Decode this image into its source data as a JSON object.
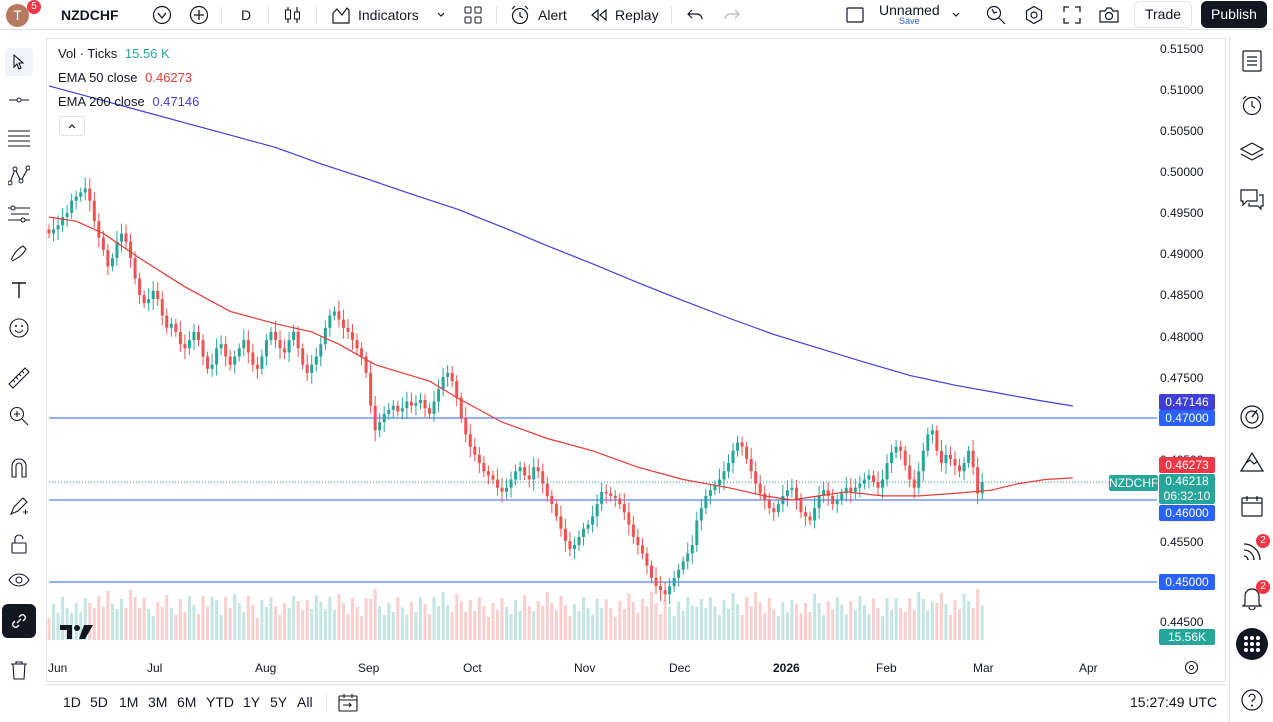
{
  "toolbar": {
    "avatar_letter": "T",
    "avatar_badge": "5",
    "symbol": "NZDCHF",
    "interval": "D",
    "indicators_label": "Indicators",
    "alert_label": "Alert",
    "replay_label": "Replay",
    "layout_name": "Unnamed",
    "layout_save": "Save",
    "trade_label": "Trade",
    "publish_label": "Publish"
  },
  "legend": {
    "vol_label": "Vol · Ticks",
    "vol_value": "15.56 K",
    "ema50_label": "EMA 50 close",
    "ema50_value": "0.46273",
    "ema200_label": "EMA 200 close",
    "ema200_value": "0.47146"
  },
  "price_axis": {
    "ticks": [
      "0.51500",
      "0.51000",
      "0.50500",
      "0.50000",
      "0.49500",
      "0.49000",
      "0.48500",
      "0.48000",
      "0.47500",
      "0.46500",
      "0.45500",
      "0.44500"
    ],
    "labels": {
      "ema200": "0.47146",
      "level_047": "0.47000",
      "ema50": "0.46273",
      "symbol_tag": "NZDCHF",
      "last_price": "0.46218",
      "countdown": "06:32:10",
      "level_046": "0.46000",
      "level_045": "0.45000",
      "volume": "15.56K"
    }
  },
  "time_axis": [
    "Jun",
    "Jul",
    "Aug",
    "Sep",
    "Oct",
    "Nov",
    "Dec",
    "2026",
    "Feb",
    "Mar",
    "Apr"
  ],
  "bottom": {
    "ranges": [
      "1D",
      "5D",
      "1M",
      "3M",
      "6M",
      "YTD",
      "1Y",
      "5Y",
      "All"
    ],
    "clock": "15:27:49 UTC"
  },
  "right_badges": {
    "news": "2",
    "alerts": "2"
  },
  "colors": {
    "up": "#26a69a",
    "down": "#ef5350",
    "ema50": "#e53935",
    "ema200": "#3f3fd6",
    "level": "#2962ff",
    "accent": "#131722"
  },
  "chart_data": {
    "type": "candlestick",
    "symbol": "NZDCHF",
    "timeframe": "D",
    "x_labels": [
      "Jun",
      "Jul",
      "Aug",
      "Sep",
      "Oct",
      "Nov",
      "Dec",
      "2026",
      "Feb",
      "Mar",
      "Apr"
    ],
    "ylim": [
      0.442,
      0.5165
    ],
    "horizontal_levels": [
      0.47,
      0.46,
      0.45
    ],
    "last_price": 0.46218,
    "series": [
      {
        "name": "EMA 50 close",
        "points": [
          [
            0,
            0.4945
          ],
          [
            6,
            0.494
          ],
          [
            12,
            0.4925
          ],
          [
            20,
            0.4895
          ],
          [
            30,
            0.486
          ],
          [
            40,
            0.483
          ],
          [
            50,
            0.4815
          ],
          [
            58,
            0.4805
          ],
          [
            64,
            0.479
          ],
          [
            72,
            0.4765
          ],
          [
            78,
            0.4755
          ],
          [
            84,
            0.4745
          ],
          [
            90,
            0.4725
          ],
          [
            100,
            0.4695
          ],
          [
            110,
            0.4675
          ],
          [
            120,
            0.466
          ],
          [
            130,
            0.464
          ],
          [
            140,
            0.4625
          ],
          [
            150,
            0.4615
          ],
          [
            158,
            0.4605
          ],
          [
            164,
            0.46
          ],
          [
            170,
            0.4605
          ],
          [
            176,
            0.461
          ],
          [
            184,
            0.4605
          ],
          [
            192,
            0.4605
          ],
          [
            200,
            0.4608
          ],
          [
            208,
            0.4612
          ],
          [
            214,
            0.462
          ],
          [
            220,
            0.4625
          ],
          [
            226,
            0.4627
          ]
        ]
      },
      {
        "name": "EMA 200 close",
        "points": [
          [
            0,
            0.5105
          ],
          [
            10,
            0.509
          ],
          [
            20,
            0.5075
          ],
          [
            30,
            0.506
          ],
          [
            40,
            0.5045
          ],
          [
            50,
            0.503
          ],
          [
            60,
            0.501
          ],
          [
            70,
            0.4992
          ],
          [
            80,
            0.4973
          ],
          [
            90,
            0.4955
          ],
          [
            100,
            0.4933
          ],
          [
            110,
            0.491
          ],
          [
            120,
            0.4888
          ],
          [
            130,
            0.4865
          ],
          [
            140,
            0.4843
          ],
          [
            150,
            0.4822
          ],
          [
            160,
            0.4802
          ],
          [
            170,
            0.4785
          ],
          [
            180,
            0.4768
          ],
          [
            190,
            0.4752
          ],
          [
            200,
            0.474
          ],
          [
            210,
            0.473
          ],
          [
            218,
            0.4722
          ],
          [
            226,
            0.47146
          ]
        ]
      }
    ],
    "closes": [
      0.4925,
      0.493,
      0.4935,
      0.4945,
      0.495,
      0.4965,
      0.497,
      0.4975,
      0.498,
      0.4965,
      0.494,
      0.492,
      0.4905,
      0.4885,
      0.4895,
      0.4915,
      0.4925,
      0.4915,
      0.4895,
      0.487,
      0.485,
      0.484,
      0.4845,
      0.4855,
      0.4845,
      0.4825,
      0.481,
      0.4815,
      0.4805,
      0.479,
      0.4785,
      0.4795,
      0.4805,
      0.4795,
      0.4775,
      0.476,
      0.4765,
      0.4785,
      0.479,
      0.4775,
      0.4765,
      0.4775,
      0.4785,
      0.4795,
      0.478,
      0.4765,
      0.476,
      0.4775,
      0.4795,
      0.4805,
      0.4795,
      0.4785,
      0.478,
      0.4795,
      0.4805,
      0.4785,
      0.4765,
      0.4755,
      0.4765,
      0.4775,
      0.479,
      0.481,
      0.4825,
      0.483,
      0.482,
      0.481,
      0.4805,
      0.4795,
      0.4785,
      0.4775,
      0.4755,
      0.4715,
      0.4685,
      0.4695,
      0.4705,
      0.471,
      0.4715,
      0.4708,
      0.4712,
      0.472,
      0.4715,
      0.4718,
      0.4722,
      0.4712,
      0.4705,
      0.472,
      0.4735,
      0.475,
      0.4755,
      0.4745,
      0.4725,
      0.47,
      0.468,
      0.4665,
      0.4655,
      0.4645,
      0.4635,
      0.463,
      0.4625,
      0.4615,
      0.461,
      0.4615,
      0.4625,
      0.4635,
      0.464,
      0.463,
      0.4625,
      0.464,
      0.4635,
      0.462,
      0.4605,
      0.4595,
      0.458,
      0.4565,
      0.455,
      0.454,
      0.4545,
      0.4555,
      0.4565,
      0.457,
      0.458,
      0.4595,
      0.461,
      0.4608,
      0.4605,
      0.4602,
      0.4595,
      0.4585,
      0.457,
      0.4555,
      0.4545,
      0.4535,
      0.452,
      0.4505,
      0.4495,
      0.449,
      0.4485,
      0.4495,
      0.4505,
      0.4515,
      0.4525,
      0.4535,
      0.4545,
      0.4575,
      0.459,
      0.4605,
      0.4612,
      0.4618,
      0.4625,
      0.4635,
      0.4645,
      0.466,
      0.467,
      0.4665,
      0.465,
      0.4635,
      0.462,
      0.4608,
      0.46,
      0.459,
      0.4585,
      0.4595,
      0.4605,
      0.4612,
      0.4615,
      0.46,
      0.4585,
      0.458,
      0.4575,
      0.459,
      0.4605,
      0.4612,
      0.4605,
      0.4595,
      0.46,
      0.4608,
      0.4615,
      0.461,
      0.4615,
      0.462,
      0.4625,
      0.463,
      0.4622,
      0.4615,
      0.4625,
      0.4645,
      0.4658,
      0.4665,
      0.466,
      0.4642,
      0.4625,
      0.4615,
      0.4635,
      0.466,
      0.468,
      0.4685,
      0.466,
      0.4645,
      0.4655,
      0.465,
      0.4642,
      0.4635,
      0.4645,
      0.466,
      0.464,
      0.4608,
      0.4622
    ]
  }
}
